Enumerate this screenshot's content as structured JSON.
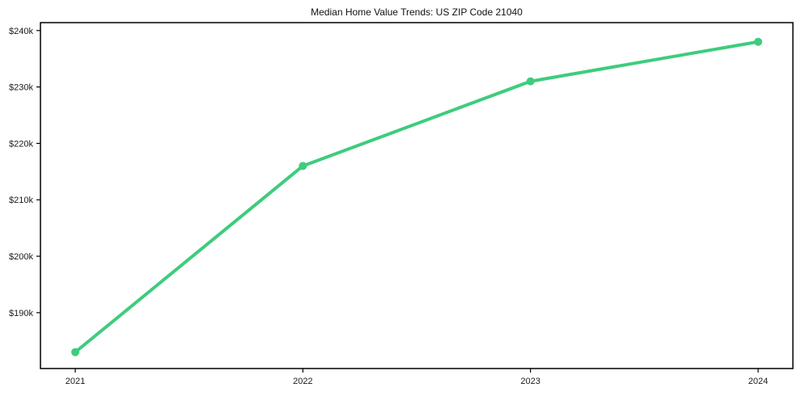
{
  "chart_data": {
    "type": "line",
    "title": "Median Home Value Trends: US ZIP Code 21040",
    "xlabel": "",
    "ylabel": "",
    "categories": [
      "2021",
      "2022",
      "2023",
      "2024"
    ],
    "values": [
      183000,
      216000,
      231000,
      238000
    ],
    "ylim": [
      180100,
      241400
    ],
    "yticks": [
      190000,
      200000,
      210000,
      220000,
      230000,
      240000
    ],
    "ytick_labels": [
      "$190k",
      "$200k",
      "$210k",
      "$220k",
      "$230k",
      "$240k"
    ],
    "grid": false,
    "legend": false,
    "line_color": "#3ecc7d",
    "axis_color": "#000000",
    "text_color": "#1a1a1a",
    "background_color": "#ffffff",
    "marker": "circle"
  }
}
